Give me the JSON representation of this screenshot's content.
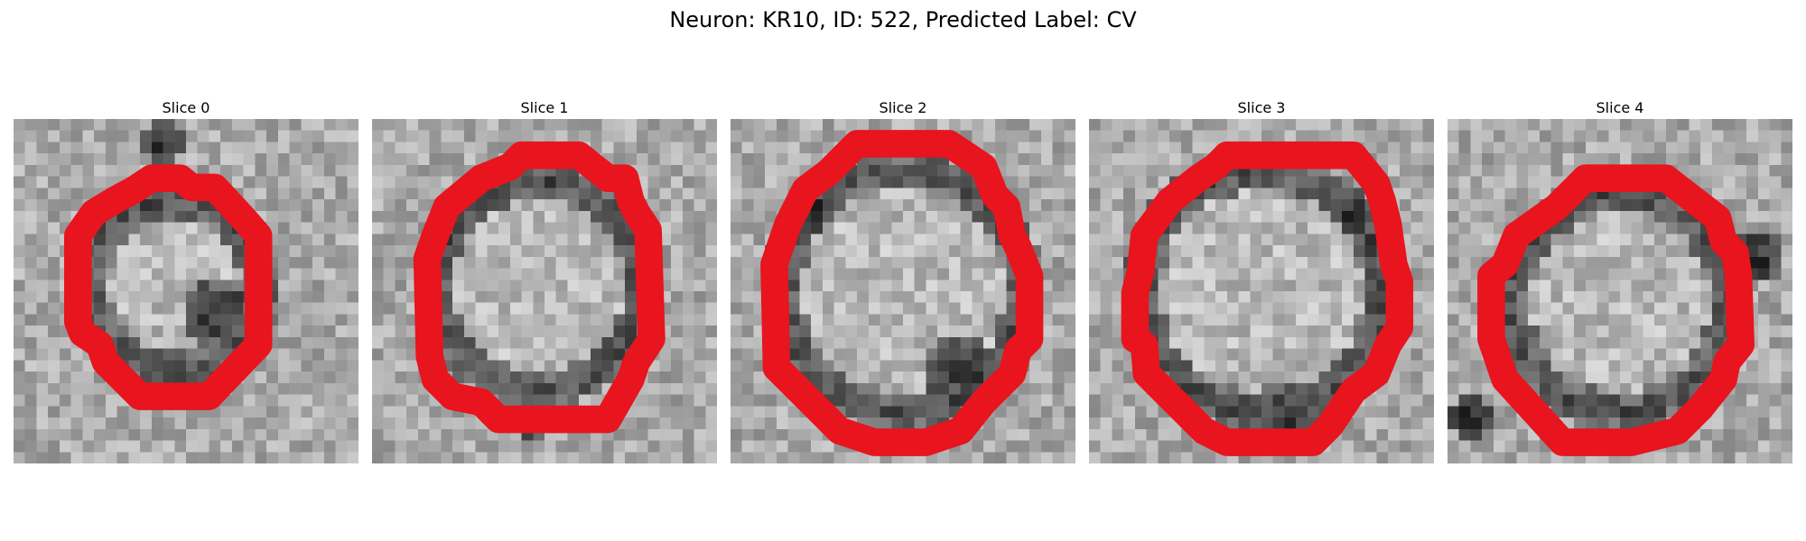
{
  "figure": {
    "title": "Neuron: KR10, ID: 522, Predicted Label: CV"
  },
  "panels": [
    {
      "label": "Slice 0"
    },
    {
      "label": "Slice 1"
    },
    {
      "label": "Slice 2"
    },
    {
      "label": "Slice 3"
    },
    {
      "label": "Slice 4"
    }
  ],
  "colors": {
    "outline": "#e8141e",
    "colormap": "gray"
  }
}
